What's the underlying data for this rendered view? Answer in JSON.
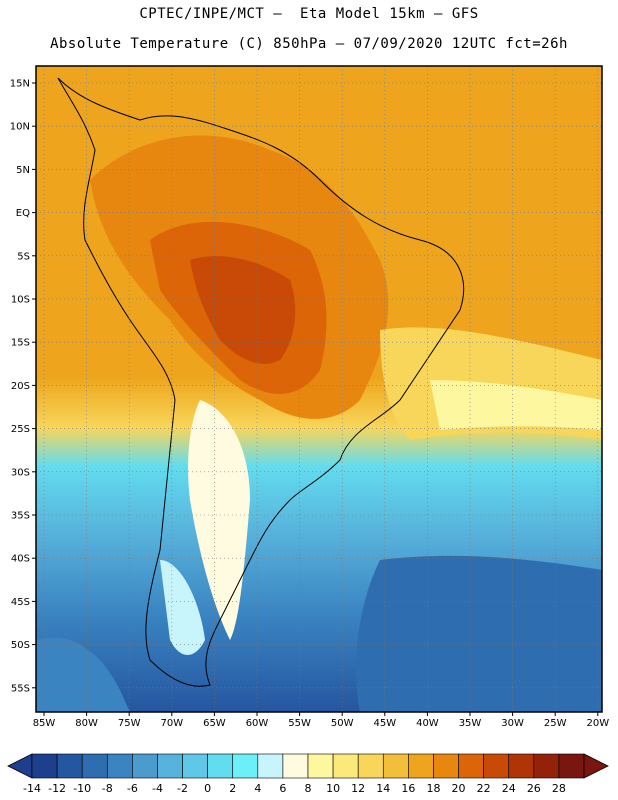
{
  "header": {
    "line1": "CPTEC/INPE/MCT –  Eta Model 15km – GFS",
    "line2": "Absolute Temperature (C) 850hPa – 07/09/2020 12UTC fct=26h"
  },
  "map": {
    "lat_labels": [
      "15N",
      "10N",
      "5N",
      "EQ",
      "5S",
      "10S",
      "15S",
      "20S",
      "25S",
      "30S",
      "35S",
      "40S",
      "45S",
      "50S",
      "55S"
    ],
    "lon_labels": [
      "85W",
      "80W",
      "75W",
      "70W",
      "65W",
      "60W",
      "55W",
      "50W",
      "45W",
      "40W",
      "35W",
      "30W",
      "25W",
      "20W"
    ]
  },
  "colorbar": {
    "labels": [
      "-14",
      "-12",
      "-10",
      "-8",
      "-6",
      "-4",
      "-2",
      "0",
      "2",
      "4",
      "6",
      "8",
      "10",
      "12",
      "14",
      "16",
      "18",
      "20",
      "22",
      "24",
      "26",
      "28"
    ],
    "colors": [
      "#1d3f8e",
      "#2556a0",
      "#2f6db1",
      "#3a84c2",
      "#4a9ccf",
      "#58b3dc",
      "#5ec8e6",
      "#62dcef",
      "#6cf0f8",
      "#c8f4fb",
      "#fefbe0",
      "#fdf7a0",
      "#fbe97a",
      "#f8d65a",
      "#f3bf3a",
      "#eea41c",
      "#e88710",
      "#dc6508",
      "#c84a06",
      "#b03406",
      "#932208",
      "#7a1610"
    ]
  }
}
